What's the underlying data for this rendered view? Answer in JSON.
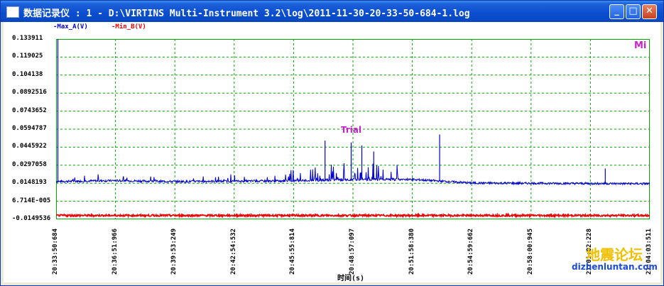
{
  "window": {
    "title": "数据记录仪 : 1 - D:\\VIRTINS Multi-Instrument 3.2\\log\\2011-11-30-20-33-50-684-1.log",
    "minimize_glyph": "_",
    "maximize_glyph": "□",
    "close_glyph": "✕"
  },
  "legend": {
    "series_a": "-Max_A(V)",
    "series_b": "-Min_B(V)"
  },
  "annotations": {
    "mi": "Mi",
    "trial": "Trial"
  },
  "watermark": {
    "text": "地震论坛",
    "url": "dizhenluntan.com"
  },
  "colors": {
    "series_a": "#0000cc",
    "series_b": "#ee0000",
    "grid": "#00aa00",
    "accent": "#cc22cc"
  },
  "chart_data": {
    "type": "line",
    "xlabel": "时间(s)",
    "ylabel": "",
    "ylim": [
      -0.0149536,
      0.133911
    ],
    "y_ticks": [
      "0.133911",
      "0.119025",
      "0.104138",
      "0.0892516",
      "0.0743652",
      "0.0594787",
      "0.0445922",
      "0.0297058",
      "0.0148193",
      "6.714E-005",
      "-0.0149536"
    ],
    "x_ticks": [
      "20:33:50:684",
      "20:36:51:966",
      "20:39:53:249",
      "20:42:54:532",
      "20:45:55:814",
      "20:48:57:097",
      "20:51:58:380",
      "20:54:59:662",
      "20:58:00:945",
      "21:01:02:228",
      "21:04:03:511"
    ],
    "grid": true,
    "series": [
      {
        "name": "Max_A(V)",
        "color": "#0000cc",
        "baseline": [
          0.0163,
          0.017,
          0.0162,
          0.0165,
          0.0168,
          0.0178,
          0.018,
          0.015,
          0.0148,
          0.0146,
          0.0144
        ],
        "spikes": [
          {
            "t": 0.003,
            "value": 0.1339
          },
          {
            "t": 0.453,
            "value": 0.05
          },
          {
            "t": 0.497,
            "value": 0.0485
          },
          {
            "t": 0.515,
            "value": 0.046
          },
          {
            "t": 0.535,
            "value": 0.041
          },
          {
            "t": 0.646,
            "value": 0.055
          },
          {
            "t": 0.925,
            "value": 0.027
          }
        ]
      },
      {
        "name": "Min_B(V)",
        "color": "#ee0000",
        "baseline": [
          -0.0118,
          -0.0118,
          -0.0118,
          -0.0118,
          -0.0118,
          -0.0118,
          -0.0118,
          -0.0118,
          -0.0118,
          -0.0118,
          -0.0118
        ]
      }
    ]
  }
}
